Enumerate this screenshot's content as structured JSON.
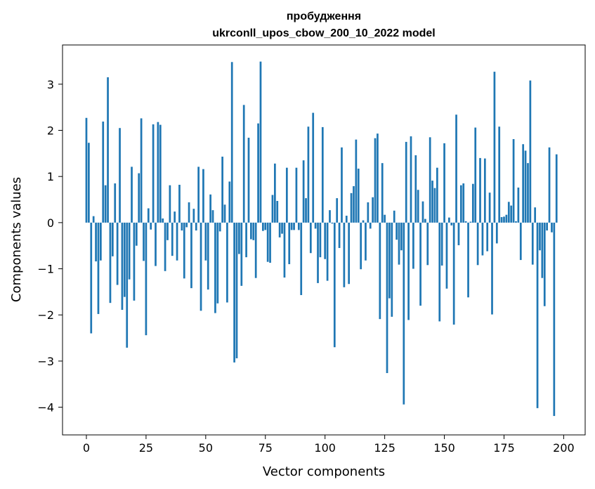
{
  "chart_data": {
    "type": "bar",
    "title": "пробудження",
    "subtitle": "ukrconll_upos_cbow_200_10_2022 model",
    "xlabel": "Vector components",
    "ylabel": "Components values",
    "xlim": [
      -10,
      209
    ],
    "ylim": [
      -4.6,
      3.85
    ],
    "xticks": [
      0,
      25,
      50,
      75,
      100,
      125,
      150,
      175,
      200
    ],
    "yticks": [
      -4,
      -3,
      -2,
      -1,
      0,
      1,
      2,
      3
    ],
    "grid": false,
    "bar_color": "#1f77b4",
    "series": [
      {
        "values": [
          2.27,
          1.73,
          -2.4,
          0.14,
          -0.84,
          -1.98,
          -0.82,
          2.19,
          0.81,
          3.15,
          -1.74,
          -0.73,
          0.85,
          -1.35,
          2.05,
          -1.89,
          -1.61,
          -2.71,
          -1.23,
          1.21,
          -1.69,
          -0.5,
          1.07,
          2.26,
          -0.83,
          -2.44,
          0.31,
          -0.15,
          2.13,
          -0.94,
          2.18,
          2.12,
          0.09,
          -1.05,
          -0.38,
          0.81,
          -0.72,
          0.24,
          -0.82,
          0.82,
          -0.17,
          -1.21,
          -0.1,
          0.44,
          -1.42,
          0.3,
          -0.17,
          1.21,
          -1.91,
          1.16,
          -0.82,
          -1.45,
          0.61,
          0.27,
          -1.96,
          -1.75,
          -0.19,
          1.43,
          0.39,
          -1.73,
          0.89,
          3.48,
          -3.03,
          -2.94,
          -0.68,
          -1.37,
          2.55,
          -0.75,
          1.84,
          -0.36,
          -0.38,
          -1.2,
          2.15,
          3.49,
          -0.18,
          -0.16,
          -0.85,
          -0.87,
          0.6,
          1.28,
          0.47,
          -0.32,
          -0.24,
          -1.19,
          1.19,
          -0.9,
          -0.16,
          -0.16,
          1.19,
          -0.16,
          -1.57,
          1.35,
          0.53,
          2.08,
          -0.66,
          2.38,
          -0.13,
          -1.31,
          -0.75,
          2.07,
          -0.79,
          -1.26,
          0.27,
          -0.02,
          -2.7,
          0.53,
          -0.55,
          1.63,
          -1.4,
          0.15,
          -1.33,
          0.64,
          0.79,
          1.8,
          1.17,
          -1.01,
          0.05,
          -0.82,
          0.44,
          -0.13,
          0.55,
          1.83,
          1.93,
          -2.09,
          1.29,
          0.17,
          -3.26,
          -1.64,
          -2.04,
          0.26,
          -0.37,
          -0.91,
          -0.6,
          -3.94,
          1.75,
          -2.11,
          1.87,
          -1.0,
          1.46,
          0.71,
          -1.8,
          0.46,
          0.08,
          -0.92,
          1.85,
          0.91,
          0.75,
          1.19,
          -2.14,
          -0.93,
          1.72,
          -1.43,
          0.11,
          -0.06,
          -2.21,
          2.34,
          -0.49,
          0.81,
          0.85,
          0.03,
          -1.62,
          0.02,
          0.84,
          2.06,
          -0.92,
          1.4,
          -0.71,
          1.39,
          -0.62,
          0.65,
          -1.99,
          3.27,
          -0.45,
          2.08,
          0.12,
          0.13,
          0.17,
          0.45,
          0.37,
          1.81,
          0.03,
          0.76,
          -0.81,
          1.7,
          1.56,
          1.29,
          3.08,
          -0.91,
          0.33,
          -4.02,
          -0.6,
          -1.2,
          -1.81,
          -0.17,
          1.63,
          -0.21,
          -4.19,
          1.48
        ]
      }
    ]
  }
}
